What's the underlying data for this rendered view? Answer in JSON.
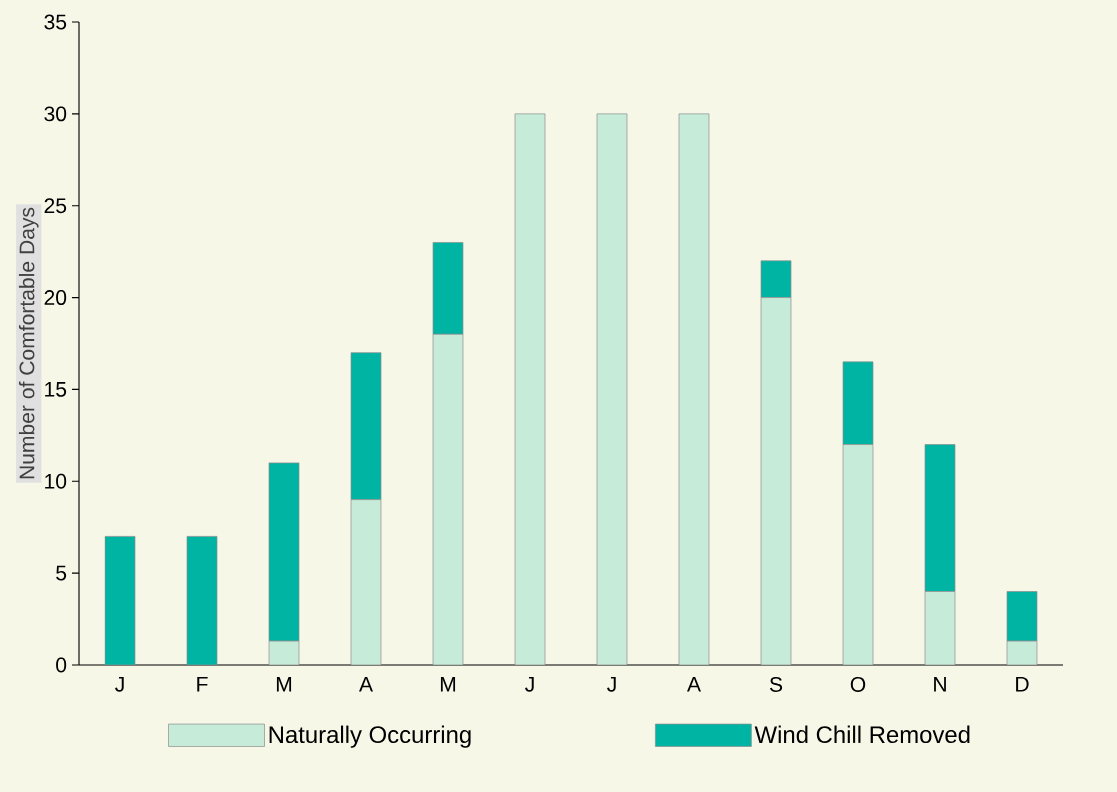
{
  "chart_data": {
    "type": "bar",
    "stacked": true,
    "ylabel": "Number of Comfortable Days",
    "categories": [
      "J",
      "F",
      "M",
      "A",
      "M",
      "J",
      "J",
      "A",
      "S",
      "O",
      "N",
      "D"
    ],
    "series": [
      {
        "name": "Naturally Occurring",
        "color": "#c6ecd9",
        "values": [
          0,
          0,
          1.3,
          9,
          18,
          30,
          30,
          30,
          20,
          12,
          4,
          1.3
        ]
      },
      {
        "name": "Wind Chill Removed",
        "color": "#00b4a4",
        "values": [
          7,
          7,
          9.7,
          8,
          5,
          0,
          0,
          0,
          2,
          4.5,
          8,
          2.7
        ]
      }
    ],
    "ylim": [
      0,
      35
    ],
    "yticks": [
      0,
      5,
      10,
      15,
      20,
      25,
      30,
      35
    ],
    "legend": "bottom"
  }
}
